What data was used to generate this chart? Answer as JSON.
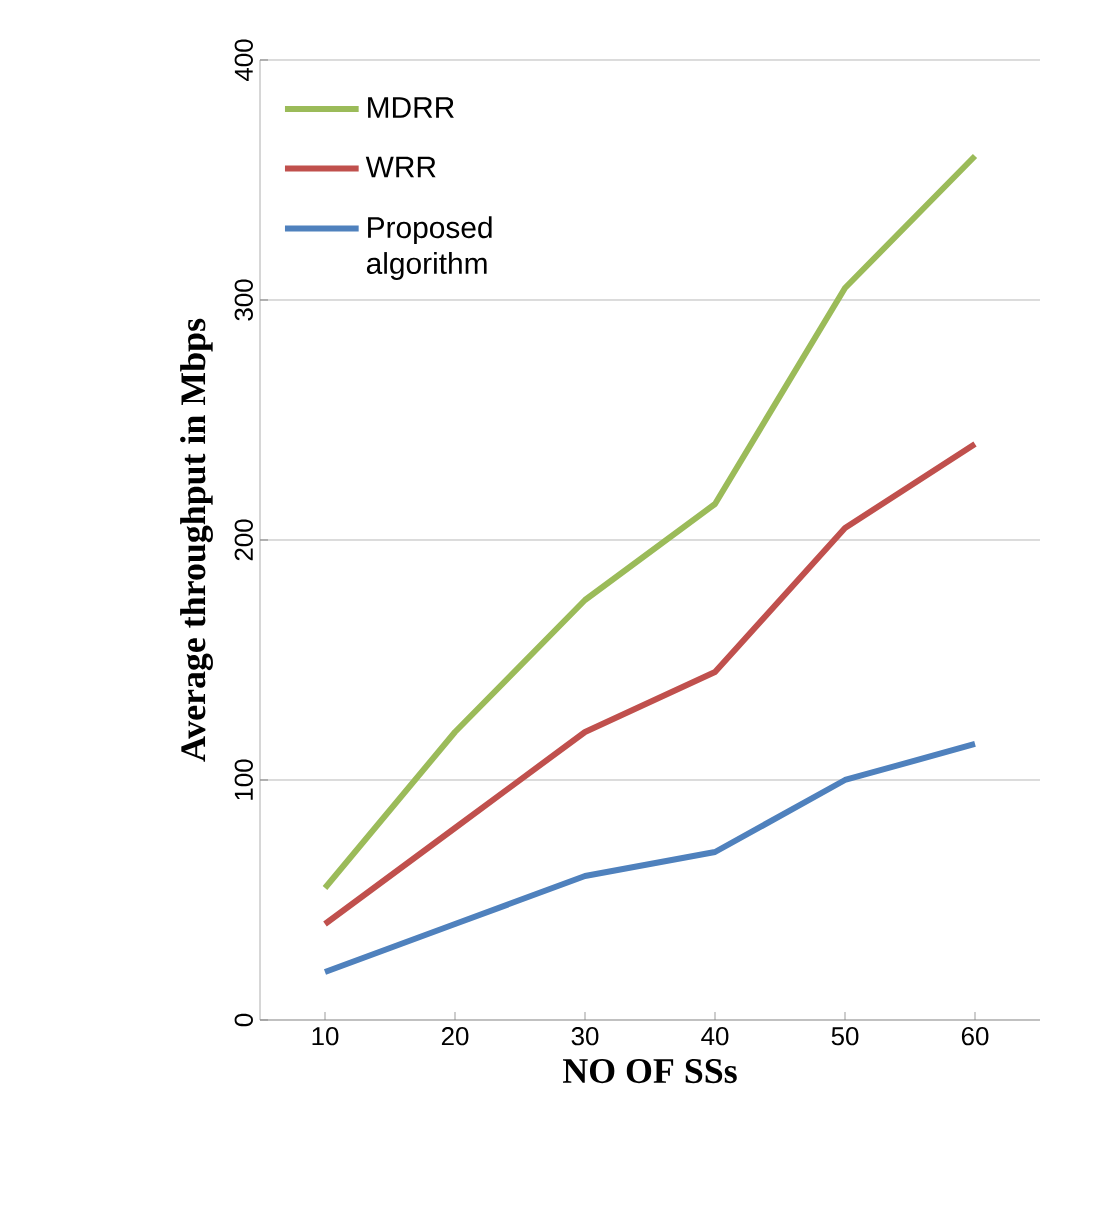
{
  "chart_data": {
    "type": "line",
    "xlabel": "NO OF SSs",
    "ylabel": "Average throughput in Mbps",
    "categories": [
      "10",
      "20",
      "30",
      "40",
      "50",
      "60"
    ],
    "series": [
      {
        "name": "MDRR",
        "color": "#9bbb59",
        "values": [
          55,
          120,
          175,
          215,
          305,
          360
        ]
      },
      {
        "name": "WRR",
        "color": "#c0504d",
        "values": [
          40,
          80,
          120,
          145,
          205,
          240
        ]
      },
      {
        "name": "Proposed algorithm",
        "color": "#4f81bd",
        "values": [
          20,
          40,
          60,
          70,
          100,
          115
        ]
      }
    ],
    "ylim": [
      0,
      400
    ],
    "yticks": [
      0,
      100,
      200,
      300,
      400
    ],
    "grid": "y",
    "legend": "top left",
    "marker": "none",
    "line_style": "solid"
  }
}
